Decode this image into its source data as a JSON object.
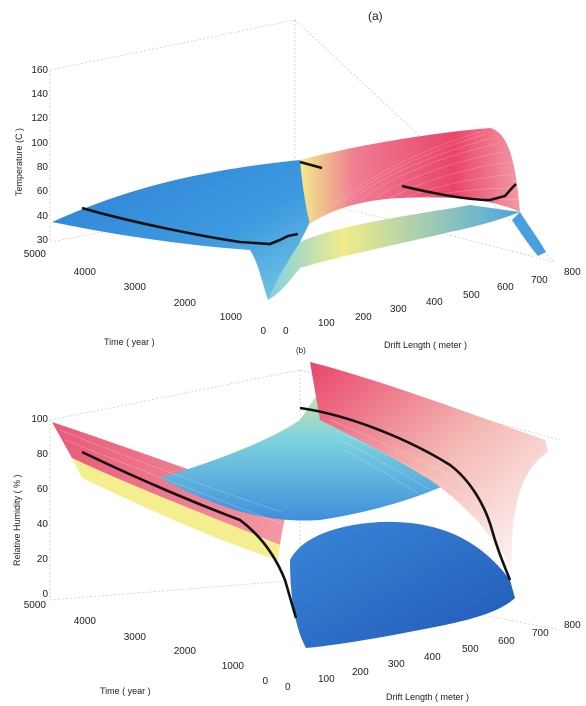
{
  "chart_data": [
    {
      "panel_label": "(a)",
      "type": "surface",
      "zlabel": "Temperature (C )",
      "xlabel": "Time ( year )",
      "ylabel": "Drift Length ( meter )",
      "zlim": [
        30,
        160
      ],
      "z_ticks": [
        "160",
        "140",
        "120",
        "100",
        "80",
        "60",
        "40",
        "30"
      ],
      "time_ticks": [
        "5000",
        "4000",
        "3000",
        "2000",
        "1000",
        "0"
      ],
      "drift_ticks": [
        "0",
        "100",
        "200",
        "300",
        "400",
        "500",
        "600",
        "700",
        "800"
      ],
      "colormap": [
        "#2b6fc9",
        "#4aa6e0",
        "#7dd3df",
        "#f2ec8a",
        "#f49aa4",
        "#e83e64"
      ]
    },
    {
      "panel_label": "(b)",
      "type": "surface",
      "zlabel": "Relative Humidity ( % )",
      "xlabel": "Time ( year )",
      "ylabel": "Drift Length ( meter )",
      "zlim": [
        0,
        100
      ],
      "z_ticks": [
        "100",
        "80",
        "60",
        "40",
        "20",
        "0"
      ],
      "time_ticks": [
        "5000",
        "4000",
        "3000",
        "2000",
        "1000",
        "0"
      ],
      "drift_ticks": [
        "0",
        "100",
        "200",
        "300",
        "400",
        "500",
        "600",
        "700",
        "800"
      ],
      "colormap": [
        "#2b6fc9",
        "#4aa6e0",
        "#7dd3df",
        "#f2ec8a",
        "#f49aa4",
        "#e83e64"
      ]
    }
  ]
}
